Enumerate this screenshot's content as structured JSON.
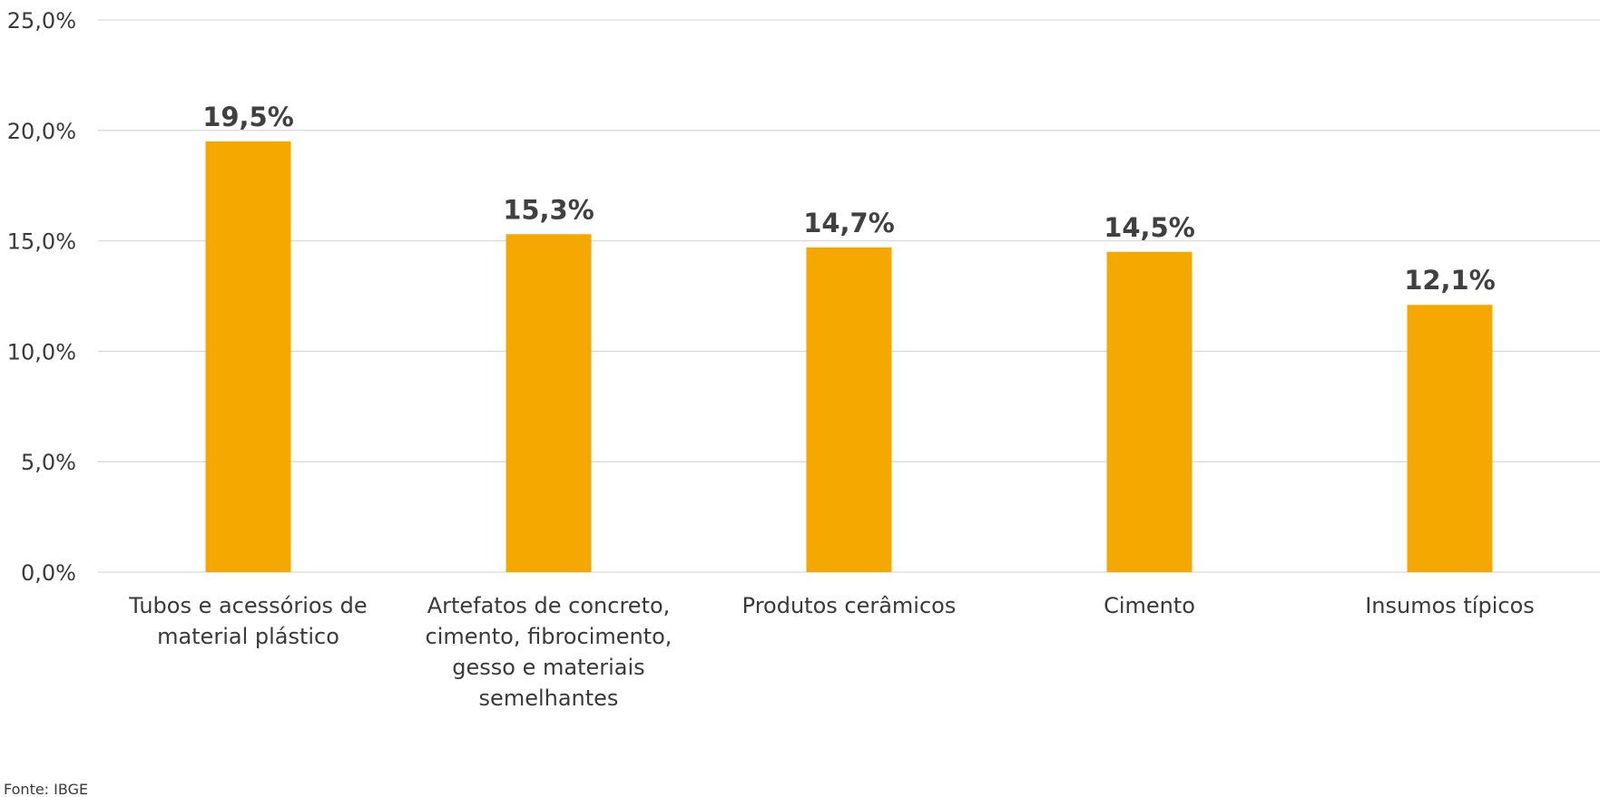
{
  "chart_data": {
    "type": "bar",
    "categories": [
      [
        "Tubos e acessórios de",
        "material plástico"
      ],
      [
        "Artefatos de concreto,",
        "cimento, fibrocimento,",
        "gesso e materiais",
        "semelhantes"
      ],
      [
        "Produtos cerâmicos"
      ],
      [
        "Cimento"
      ],
      [
        "Insumos típicos"
      ]
    ],
    "values": [
      19.5,
      15.3,
      14.7,
      14.5,
      12.1
    ],
    "value_labels": [
      "19,5%",
      "15,3%",
      "14,7%",
      "14,5%",
      "12,1%"
    ],
    "y_ticks": [
      0,
      5,
      10,
      15,
      20,
      25
    ],
    "y_tick_labels": [
      "0,0%",
      "5,0%",
      "10,0%",
      "15,0%",
      "20,0%",
      "25,0%"
    ],
    "ylim": [
      0,
      25
    ],
    "grid": true,
    "legend": "none",
    "bar_color": "#F5A800",
    "source": "Fonte: IBGE"
  }
}
